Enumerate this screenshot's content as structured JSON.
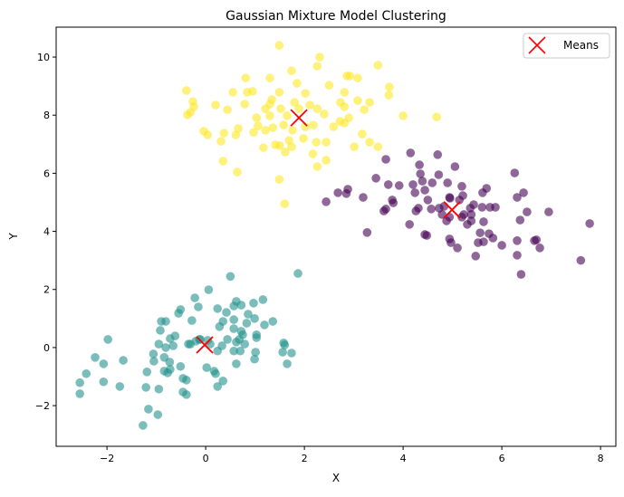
{
  "chart_data": {
    "type": "scatter",
    "title": "Gaussian Mixture Model Clustering",
    "xlabel": "X",
    "ylabel": "Y",
    "xlim": [
      -3.03,
      8.31
    ],
    "ylim": [
      -3.4,
      11.03
    ],
    "xticks": [
      -2,
      0,
      2,
      4,
      6,
      8
    ],
    "yticks": [
      -2,
      0,
      2,
      4,
      6,
      8,
      10
    ],
    "grid": false,
    "legend": {
      "placement": "top-right",
      "entries": [
        "Means"
      ]
    },
    "marker_alpha": 0.6,
    "clusters": [
      {
        "color": "#fde725",
        "points": [
          [
            1.49,
            10.4
          ],
          [
            2.31,
            10.0
          ],
          [
            2.26,
            9.69
          ],
          [
            3.49,
            9.72
          ],
          [
            1.74,
            9.53
          ],
          [
            0.81,
            9.28
          ],
          [
            1.3,
            9.28
          ],
          [
            2.92,
            9.35
          ],
          [
            2.86,
            9.35
          ],
          [
            3.08,
            9.28
          ],
          [
            2.5,
            9.03
          ],
          [
            3.72,
            8.97
          ],
          [
            1.85,
            9.1
          ],
          [
            -0.39,
            8.85
          ],
          [
            0.55,
            8.79
          ],
          [
            0.84,
            8.79
          ],
          [
            0.95,
            8.82
          ],
          [
            3.71,
            8.69
          ],
          [
            1.49,
            8.79
          ],
          [
            2.81,
            8.79
          ],
          [
            2.02,
            8.75
          ],
          [
            1.34,
            8.54
          ],
          [
            3.08,
            8.5
          ],
          [
            -0.26,
            8.47
          ],
          [
            0.2,
            8.35
          ],
          [
            1.3,
            8.38
          ],
          [
            1.8,
            8.44
          ],
          [
            2.11,
            8.35
          ],
          [
            2.73,
            8.44
          ],
          [
            3.32,
            8.44
          ],
          [
            -0.24,
            8.29
          ],
          [
            0.44,
            8.19
          ],
          [
            1.21,
            8.22
          ],
          [
            1.52,
            8.22
          ],
          [
            2.26,
            8.22
          ],
          [
            2.81,
            8.29
          ],
          [
            3.21,
            8.19
          ],
          [
            -0.31,
            8.1
          ],
          [
            -0.37,
            8.01
          ],
          [
            1.03,
            7.91
          ],
          [
            1.3,
            7.98
          ],
          [
            1.65,
            7.98
          ],
          [
            2.4,
            8.04
          ],
          [
            2.9,
            7.91
          ],
          [
            4.0,
            7.98
          ],
          [
            4.68,
            7.94
          ],
          [
            2.72,
            7.79
          ],
          [
            2.81,
            7.73
          ],
          [
            1.06,
            7.63
          ],
          [
            0.66,
            7.54
          ],
          [
            1.21,
            7.48
          ],
          [
            1.36,
            7.57
          ],
          [
            1.58,
            7.66
          ],
          [
            2.02,
            7.6
          ],
          [
            2.18,
            7.66
          ],
          [
            2.59,
            7.6
          ],
          [
            -0.04,
            7.45
          ],
          [
            0.04,
            7.32
          ],
          [
            0.37,
            7.38
          ],
          [
            0.61,
            7.32
          ],
          [
            0.97,
            7.41
          ],
          [
            3.17,
            7.35
          ],
          [
            3.32,
            7.07
          ],
          [
            0.31,
            7.1
          ],
          [
            1.69,
            7.13
          ],
          [
            2.24,
            7.07
          ],
          [
            2.44,
            7.07
          ],
          [
            1.5,
            6.95
          ],
          [
            1.17,
            6.88
          ],
          [
            1.41,
            6.98
          ],
          [
            1.74,
            6.91
          ],
          [
            3.01,
            6.91
          ],
          [
            1.98,
            7.2
          ],
          [
            2.17,
            6.67
          ],
          [
            3.49,
            6.91
          ],
          [
            1.61,
            6.73
          ],
          [
            0.35,
            6.42
          ],
          [
            2.44,
            6.45
          ],
          [
            2.26,
            6.23
          ],
          [
            0.64,
            6.04
          ],
          [
            1.49,
            5.79
          ],
          [
            1.6,
            4.95
          ],
          [
            0.79,
            8.38
          ],
          [
            1.76,
            7.48
          ],
          [
            1.89,
            8.22
          ]
        ]
      },
      {
        "color": "#440154",
        "points": [
          [
            3.65,
            6.48
          ],
          [
            4.15,
            6.7
          ],
          [
            4.7,
            6.64
          ],
          [
            5.05,
            6.23
          ],
          [
            3.45,
            5.83
          ],
          [
            4.33,
            6.29
          ],
          [
            4.35,
            5.98
          ],
          [
            4.72,
            5.95
          ],
          [
            6.26,
            6.01
          ],
          [
            3.92,
            5.58
          ],
          [
            3.7,
            5.61
          ],
          [
            4.2,
            5.61
          ],
          [
            4.39,
            5.73
          ],
          [
            4.59,
            5.67
          ],
          [
            4.9,
            5.67
          ],
          [
            5.19,
            5.55
          ],
          [
            5.69,
            5.48
          ],
          [
            5.61,
            5.33
          ],
          [
            4.44,
            5.42
          ],
          [
            4.24,
            5.33
          ],
          [
            2.88,
            5.45
          ],
          [
            2.68,
            5.33
          ],
          [
            2.85,
            5.3
          ],
          [
            3.19,
            5.17
          ],
          [
            2.44,
            5.02
          ],
          [
            3.78,
            5.08
          ],
          [
            3.8,
            4.98
          ],
          [
            4.5,
            5.08
          ],
          [
            4.94,
            5.17
          ],
          [
            5.21,
            5.23
          ],
          [
            6.31,
            5.17
          ],
          [
            6.44,
            5.33
          ],
          [
            5.14,
            5.08
          ],
          [
            5.87,
            4.83
          ],
          [
            4.31,
            4.8
          ],
          [
            4.57,
            4.77
          ],
          [
            4.73,
            4.8
          ],
          [
            5.36,
            4.8
          ],
          [
            5.6,
            4.83
          ],
          [
            5.76,
            4.83
          ],
          [
            6.51,
            4.67
          ],
          [
            6.95,
            4.67
          ],
          [
            3.61,
            4.7
          ],
          [
            3.65,
            4.77
          ],
          [
            4.26,
            4.7
          ],
          [
            4.79,
            4.58
          ],
          [
            5.23,
            4.58
          ],
          [
            5.38,
            4.58
          ],
          [
            5.19,
            4.49
          ],
          [
            4.94,
            4.49
          ],
          [
            4.88,
            4.36
          ],
          [
            4.13,
            4.24
          ],
          [
            6.37,
            4.39
          ],
          [
            5.63,
            4.33
          ],
          [
            5.3,
            4.24
          ],
          [
            5.38,
            4.36
          ],
          [
            4.44,
            3.89
          ],
          [
            4.48,
            3.86
          ],
          [
            4.94,
            3.74
          ],
          [
            4.97,
            3.61
          ],
          [
            5.56,
            3.95
          ],
          [
            5.74,
            3.92
          ],
          [
            5.82,
            3.77
          ],
          [
            5.63,
            3.64
          ],
          [
            6.31,
            3.68
          ],
          [
            6.7,
            3.71
          ],
          [
            6.66,
            3.68
          ],
          [
            6.77,
            3.43
          ],
          [
            5.1,
            3.43
          ],
          [
            5.52,
            3.61
          ],
          [
            6.0,
            3.52
          ],
          [
            5.47,
            3.15
          ],
          [
            6.31,
            3.18
          ],
          [
            7.6,
            3.0
          ],
          [
            6.39,
            2.52
          ],
          [
            7.78,
            4.27
          ],
          [
            3.27,
            3.96
          ],
          [
            4.95,
            5.14
          ],
          [
            4.83,
            4.86
          ],
          [
            5.43,
            4.92
          ]
        ]
      },
      {
        "color": "#21918c",
        "points": [
          [
            1.87,
            2.55
          ],
          [
            0.5,
            2.45
          ],
          [
            0.06,
            1.99
          ],
          [
            -0.22,
            1.71
          ],
          [
            1.16,
            1.65
          ],
          [
            0.97,
            1.53
          ],
          [
            0.62,
            1.59
          ],
          [
            0.72,
            1.46
          ],
          [
            0.57,
            1.43
          ],
          [
            0.24,
            1.34
          ],
          [
            -0.15,
            1.4
          ],
          [
            -0.51,
            1.31
          ],
          [
            -0.55,
            1.18
          ],
          [
            0.42,
            1.21
          ],
          [
            0.86,
            1.15
          ],
          [
            0.35,
            0.9
          ],
          [
            0.57,
            0.96
          ],
          [
            0.83,
            0.84
          ],
          [
            0.99,
            1.0
          ],
          [
            1.36,
            0.9
          ],
          [
            1.19,
            0.78
          ],
          [
            -0.28,
            0.93
          ],
          [
            -0.9,
            0.9
          ],
          [
            -0.81,
            0.9
          ],
          [
            -0.92,
            0.59
          ],
          [
            -0.62,
            0.4
          ],
          [
            0.28,
            0.72
          ],
          [
            0.57,
            0.65
          ],
          [
            0.75,
            0.44
          ],
          [
            0.72,
            0.56
          ],
          [
            1.03,
            0.44
          ],
          [
            1.03,
            0.34
          ],
          [
            -0.72,
            0.31
          ],
          [
            -0.13,
            0.28
          ],
          [
            -0.2,
            0.22
          ],
          [
            -0.31,
            0.12
          ],
          [
            0.04,
            0.25
          ],
          [
            0.44,
            0.28
          ],
          [
            0.68,
            0.28
          ],
          [
            0.09,
            0.12
          ],
          [
            0.79,
            0.12
          ],
          [
            1.58,
            0.16
          ],
          [
            1.6,
            0.09
          ],
          [
            -0.95,
            0.12
          ],
          [
            -1.98,
            0.28
          ],
          [
            -0.66,
            0.06
          ],
          [
            -0.35,
            0.12
          ],
          [
            0.33,
            0.06
          ],
          [
            0.62,
            0.19
          ],
          [
            1.01,
            -0.16
          ],
          [
            1.56,
            -0.16
          ],
          [
            1.74,
            -0.19
          ],
          [
            0.7,
            -0.12
          ],
          [
            0.57,
            -0.12
          ],
          [
            0.24,
            -0.12
          ],
          [
            -1.06,
            -0.22
          ],
          [
            -0.81,
            0.0
          ],
          [
            -0.84,
            -0.34
          ],
          [
            -2.24,
            -0.34
          ],
          [
            -1.05,
            -0.47
          ],
          [
            -0.73,
            -0.5
          ],
          [
            -1.67,
            -0.44
          ],
          [
            -2.42,
            -0.9
          ],
          [
            -2.07,
            -0.56
          ],
          [
            -0.72,
            -0.75
          ],
          [
            -0.51,
            -0.65
          ],
          [
            -0.84,
            -0.81
          ],
          [
            -0.77,
            -0.87
          ],
          [
            -1.19,
            -0.84
          ],
          [
            0.02,
            -0.69
          ],
          [
            0.17,
            -0.81
          ],
          [
            0.2,
            -0.9
          ],
          [
            0.62,
            -0.56
          ],
          [
            1.65,
            -0.56
          ],
          [
            0.99,
            -0.4
          ],
          [
            -0.46,
            -1.06
          ],
          [
            -0.39,
            -1.12
          ],
          [
            -1.21,
            -1.37
          ],
          [
            -2.07,
            -1.18
          ],
          [
            -2.55,
            -1.21
          ],
          [
            -1.74,
            -1.34
          ],
          [
            0.24,
            -1.34
          ],
          [
            0.35,
            -1.15
          ],
          [
            -0.95,
            -1.43
          ],
          [
            -0.46,
            -1.53
          ],
          [
            -0.39,
            -1.62
          ],
          [
            -2.55,
            -1.59
          ],
          [
            -1.16,
            -2.12
          ],
          [
            -0.97,
            -2.31
          ],
          [
            -1.27,
            -2.68
          ],
          [
            -0.11,
            0.28
          ]
        ]
      }
    ],
    "means": {
      "name": "Means",
      "color": "#ff0000",
      "marker": "x",
      "points": [
        [
          1.89,
          7.91
        ],
        [
          4.99,
          4.74
        ],
        [
          -0.02,
          0.09
        ]
      ]
    }
  }
}
